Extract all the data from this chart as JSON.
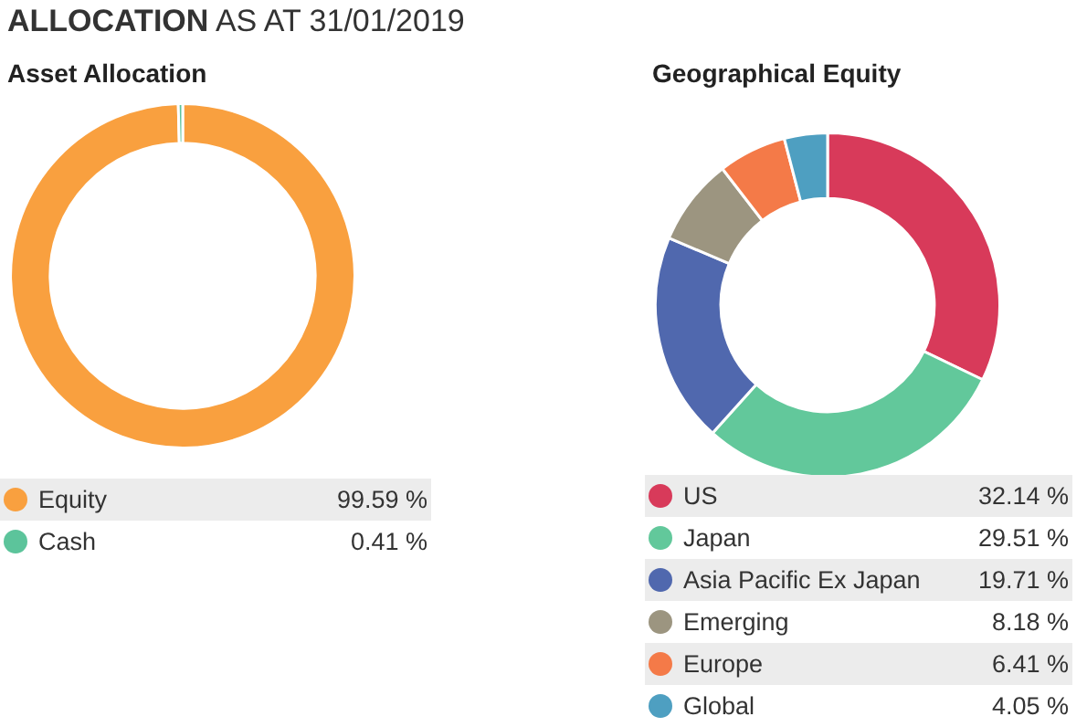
{
  "chart_data": [
    {
      "type": "donut",
      "title": "Asset Allocation",
      "annotations": [
        "ALLOCATION AS AT 31/01/2019"
      ],
      "categories": [
        "Equity",
        "Cash"
      ],
      "values": [
        99.59,
        0.41
      ],
      "value_labels": [
        "99.59 %",
        "0.41 %"
      ],
      "colors": [
        "#f9a03f",
        "#5cc49b"
      ],
      "legend": "bottom"
    },
    {
      "type": "donut",
      "title": "Geographical Equity",
      "categories": [
        "US",
        "Japan",
        "Asia Pacific Ex Japan",
        "Emerging",
        "Europe",
        "Global"
      ],
      "values": [
        32.14,
        29.51,
        19.71,
        8.18,
        6.41,
        4.05
      ],
      "value_labels": [
        "32.14 %",
        "29.51 %",
        "19.71 %",
        "8.18 %",
        "6.41 %",
        "4.05 %"
      ],
      "colors": [
        "#d83a5a",
        "#62c89b",
        "#5068ae",
        "#9c9580",
        "#f47a48",
        "#4e9fc1"
      ],
      "legend": "bottom"
    }
  ]
}
